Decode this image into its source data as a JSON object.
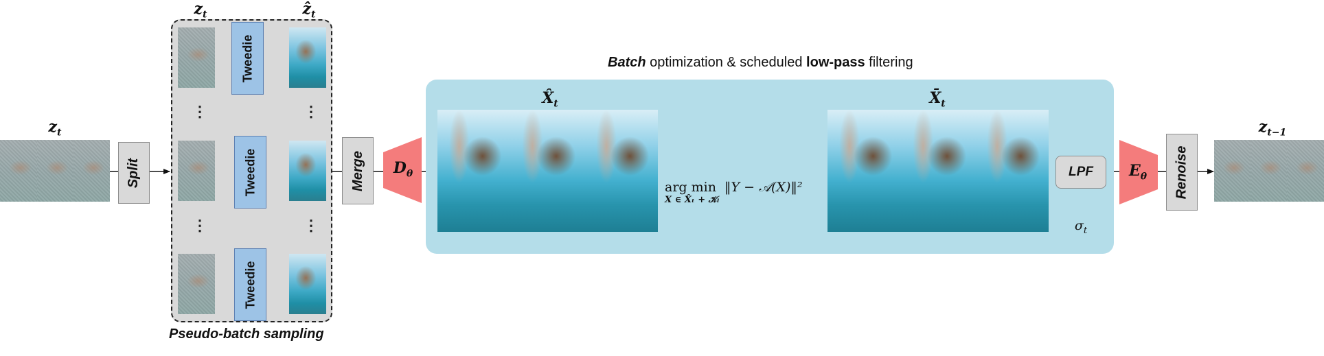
{
  "diagram": {
    "top_caption": {
      "part1": "Batch",
      "part2": " optimization & scheduled ",
      "part3": "low-pass",
      "part4": " filtering"
    },
    "bottom_caption": "Pseudo-batch sampling",
    "labels": {
      "z_t_input": "z",
      "z_t_input_sub": "t",
      "z_t_group": "z",
      "z_t_group_sub": "t",
      "z_hat_t": "ẑ",
      "z_hat_t_sub": "t",
      "x_hat_t": "X̂",
      "x_hat_t_sub": "t",
      "x_bar_t": "X̄",
      "x_bar_t_sub": "t",
      "z_t_minus_1": "z",
      "z_t_minus_1_sub": "t−1",
      "sigma_t": "σ",
      "sigma_t_sub": "t",
      "d_theta": "D",
      "d_theta_sub": "θ",
      "e_theta": "E",
      "e_theta_sub": "θ"
    },
    "blocks": {
      "split": "Split",
      "merge": "Merge",
      "tweedie": "Tweedie",
      "lpf": "LPF",
      "renoise": "Renoise"
    },
    "equation": {
      "op": "arg min",
      "objective": "‖Y − 𝒜(X)‖²",
      "constraint": "X ∈ X̂ₜ + 𝒦ₗ"
    },
    "ellipsis": "⋮",
    "colors": {
      "optimization_panel": "#b4dde9",
      "tweedie_block": "#9dc3e6",
      "grey_block": "#d9d9d9",
      "decoder_encoder": "#f47c7c",
      "pseudo_batch_panel": "#d9d9d9"
    }
  }
}
